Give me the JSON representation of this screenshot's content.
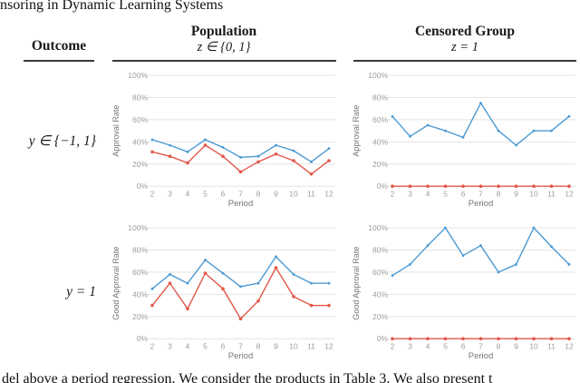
{
  "page_header": "nsoring in Dynamic Learning Systems",
  "table": {
    "outcome_header": "Outcome",
    "col1_title": "Population",
    "col1_subtitle": "z ∈ {0, 1}",
    "col2_title": "Censored Group",
    "col2_subtitle": "z = 1",
    "row1_label": "y ∈ {−1, 1}",
    "row2_label": "y = 1"
  },
  "caption_fragment": "del above a period regression. We consider the products in Table 3. We also present t",
  "colors": {
    "blue": "#4C9AD3",
    "red": "#E2584A",
    "grid": "#e4e4e4",
    "tick_text": "#9e9e9e",
    "axis_label": "#757575"
  },
  "chart_data": [
    {
      "type": "line",
      "name": "population-all-outcomes",
      "xlabel": "Period",
      "ylabel": "Approval Rate",
      "x": [
        2,
        3,
        4,
        5,
        6,
        7,
        8,
        9,
        10,
        11,
        12
      ],
      "ylim": [
        0,
        100
      ],
      "yticks": [
        0,
        20,
        40,
        60,
        80,
        100
      ],
      "grid": true,
      "legend": "none",
      "series": [
        {
          "name": "series-blue",
          "color": "#4C9AD3",
          "values": [
            42,
            37,
            31,
            42,
            35,
            26,
            27,
            37,
            32,
            22,
            34
          ]
        },
        {
          "name": "series-red",
          "color": "#E2584A",
          "values": [
            31,
            27,
            21,
            37,
            27,
            13,
            22,
            29,
            23,
            11,
            23
          ]
        }
      ]
    },
    {
      "type": "line",
      "name": "censored-all-outcomes",
      "xlabel": "Period",
      "ylabel": "Approval Rate",
      "x": [
        2,
        3,
        4,
        5,
        6,
        7,
        8,
        9,
        10,
        11,
        12
      ],
      "ylim": [
        0,
        100
      ],
      "yticks": [
        0,
        20,
        40,
        60,
        80,
        100
      ],
      "grid": true,
      "legend": "none",
      "series": [
        {
          "name": "series-blue",
          "color": "#4C9AD3",
          "values": [
            63,
            45,
            55,
            50,
            44,
            75,
            50,
            37,
            50,
            50,
            63
          ]
        },
        {
          "name": "series-red",
          "color": "#E2584A",
          "values": [
            0,
            0,
            0,
            0,
            0,
            0,
            0,
            0,
            0,
            0,
            0
          ]
        }
      ]
    },
    {
      "type": "line",
      "name": "population-good-outcomes",
      "xlabel": "Period",
      "ylabel": "Good Approval Rate",
      "x": [
        2,
        3,
        4,
        5,
        6,
        7,
        8,
        9,
        10,
        11,
        12
      ],
      "ylim": [
        0,
        100
      ],
      "yticks": [
        0,
        20,
        40,
        60,
        80,
        100
      ],
      "grid": true,
      "legend": "none",
      "series": [
        {
          "name": "series-blue",
          "color": "#4C9AD3",
          "values": [
            45,
            58,
            50,
            71,
            59,
            47,
            50,
            74,
            58,
            50,
            50
          ]
        },
        {
          "name": "series-red",
          "color": "#E2584A",
          "values": [
            30,
            50,
            27,
            59,
            45,
            18,
            34,
            64,
            38,
            30,
            30
          ]
        }
      ]
    },
    {
      "type": "line",
      "name": "censored-good-outcomes",
      "xlabel": "Period",
      "ylabel": "Good Approval Rate",
      "x": [
        2,
        3,
        4,
        5,
        6,
        7,
        8,
        9,
        10,
        11,
        12
      ],
      "ylim": [
        0,
        100
      ],
      "yticks": [
        0,
        20,
        40,
        60,
        80,
        100
      ],
      "grid": true,
      "legend": "none",
      "series": [
        {
          "name": "series-blue",
          "color": "#4C9AD3",
          "values": [
            57,
            67,
            84,
            100,
            75,
            84,
            60,
            67,
            100,
            83,
            67
          ]
        },
        {
          "name": "series-red",
          "color": "#E2584A",
          "values": [
            0,
            0,
            0,
            0,
            0,
            0,
            0,
            0,
            0,
            0,
            0
          ]
        }
      ]
    }
  ]
}
